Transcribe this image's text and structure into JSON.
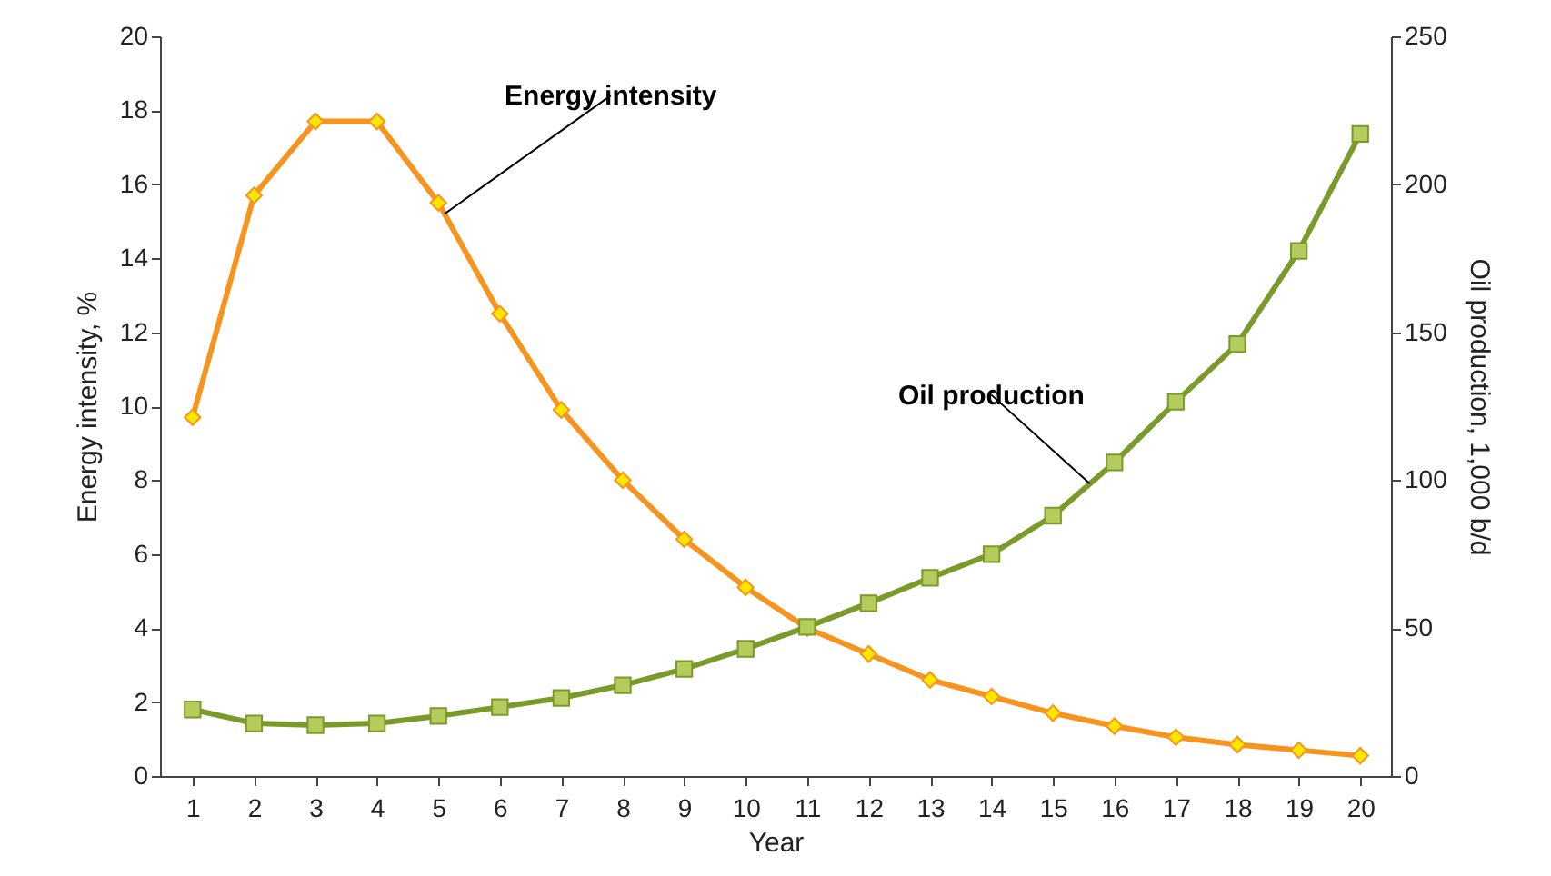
{
  "chart_data": {
    "type": "line",
    "xlabel": "Year",
    "ylabel": "Energy intensity, %",
    "y2label": "Oil production, 1,000 b/d",
    "x": [
      1,
      2,
      3,
      4,
      5,
      6,
      7,
      8,
      9,
      10,
      11,
      12,
      13,
      14,
      15,
      16,
      17,
      18,
      19,
      20
    ],
    "series": [
      {
        "name": "Energy intensity",
        "color": "#f7941d",
        "marker": "diamond",
        "values": [
          9.7,
          15.7,
          17.7,
          17.7,
          15.5,
          12.5,
          9.9,
          8.0,
          6.4,
          5.1,
          4.0,
          3.3,
          2.6,
          2.15,
          1.7,
          1.35,
          1.05,
          0.85,
          0.7,
          0.55
        ]
      },
      {
        "name": "Oil production",
        "color": "#7a9a2a",
        "marker": "square",
        "axis": "y2",
        "values": [
          22.5,
          17.8,
          17.2,
          17.8,
          20.3,
          23.3,
          26.4,
          30.7,
          36.2,
          43,
          50.4,
          58.4,
          67,
          75,
          88,
          106,
          126.5,
          146,
          177.5,
          217
        ]
      }
    ],
    "xlim": [
      0.47,
      20.5
    ],
    "xticks": [
      1,
      2,
      3,
      4,
      5,
      6,
      7,
      8,
      9,
      10,
      11,
      12,
      13,
      14,
      15,
      16,
      17,
      18,
      19,
      20
    ],
    "ylim": [
      0,
      20
    ],
    "yticks": [
      0,
      2,
      4,
      6,
      8,
      10,
      12,
      14,
      16,
      18,
      20
    ],
    "y2lim": [
      0,
      250
    ],
    "y2ticks": [
      0,
      50,
      100,
      150,
      200,
      250
    ],
    "line_style": "solid"
  }
}
